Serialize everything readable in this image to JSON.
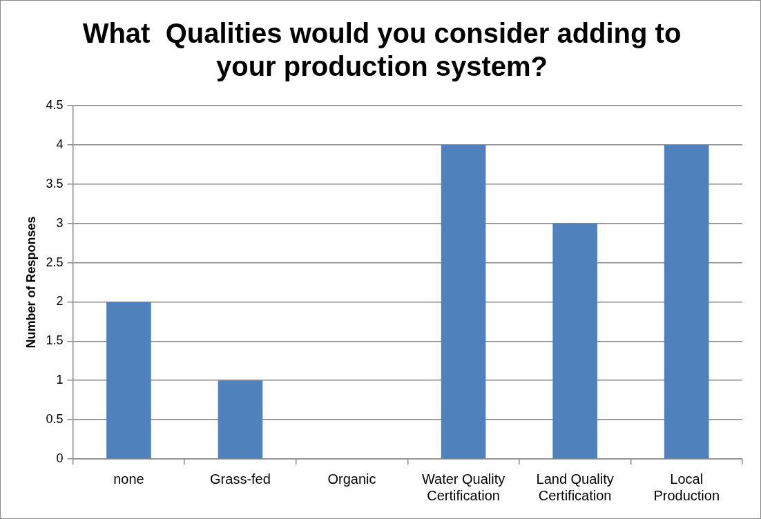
{
  "chart_data": {
    "type": "bar",
    "title": "What  Qualities would you consider adding to your production system?",
    "ylabel": "Number of Responses",
    "categories": [
      "none",
      "Grass-fed",
      "Organic",
      "Water Quality Certification",
      "Land Quality Certification",
      "Local Production"
    ],
    "values": [
      2,
      1,
      0,
      4,
      3,
      4
    ],
    "color": "#4f81bd",
    "ylim": [
      0,
      4.5
    ],
    "yticks": [
      0,
      0.5,
      1,
      1.5,
      2,
      2.5,
      3,
      3.5,
      4,
      4.5
    ],
    "grid": "y",
    "legend": false
  }
}
